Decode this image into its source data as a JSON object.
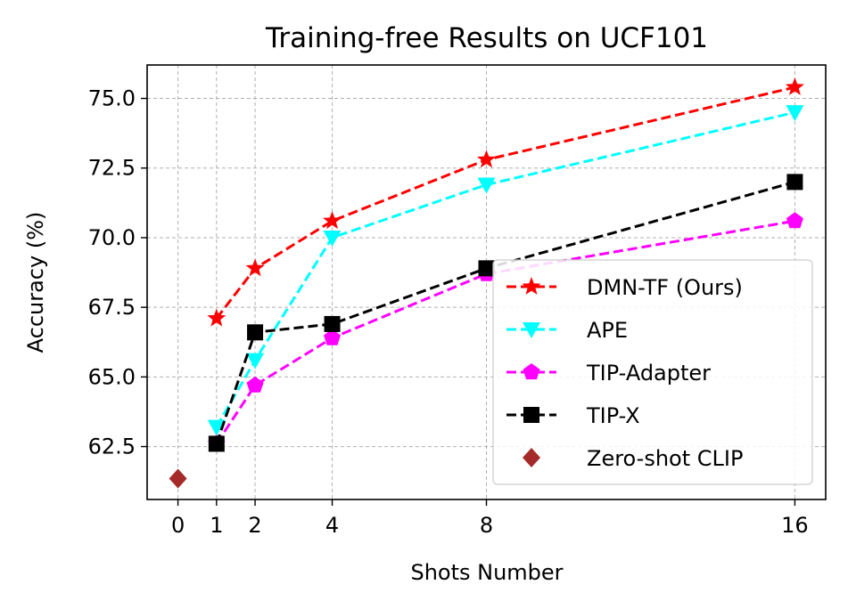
{
  "chart_data": {
    "type": "line",
    "title": "Training-free Results on UCF101",
    "xlabel": "Shots Number",
    "ylabel": "Accuracy (%)",
    "x_ticks": [
      0,
      1,
      2,
      4,
      8,
      16
    ],
    "y_ticks": [
      "62.5",
      "65.0",
      "67.5",
      "70.0",
      "72.5",
      "75.0"
    ],
    "xlim": [
      -0.8,
      16.8
    ],
    "ylim": [
      60.6,
      76.2
    ],
    "grid": true,
    "legend_position": "lower-right",
    "series": [
      {
        "name": "DMN-TF (Ours)",
        "color": "#ff0000",
        "marker": "star",
        "x": [
          1,
          2,
          4,
          8,
          16
        ],
        "y": [
          67.1,
          68.9,
          70.6,
          72.8,
          75.4
        ]
      },
      {
        "name": "APE",
        "color": "#00ffff",
        "marker": "triangle-down",
        "x": [
          1,
          2,
          4,
          8,
          16
        ],
        "y": [
          63.2,
          65.6,
          70.0,
          71.9,
          74.5
        ]
      },
      {
        "name": "TIP-Adapter",
        "color": "#ff00ff",
        "marker": "pentagon",
        "x": [
          1,
          2,
          4,
          8,
          16
        ],
        "y": [
          62.6,
          64.7,
          66.4,
          68.7,
          70.6
        ]
      },
      {
        "name": "TIP-X",
        "color": "#000000",
        "marker": "square",
        "x": [
          1,
          2,
          4,
          8,
          16
        ],
        "y": [
          62.6,
          66.6,
          66.9,
          68.9,
          72.0
        ]
      },
      {
        "name": "Zero-shot CLIP",
        "color": "#a52a2a",
        "marker": "diamond",
        "line": false,
        "x": [
          0
        ],
        "y": [
          61.35
        ]
      }
    ]
  }
}
